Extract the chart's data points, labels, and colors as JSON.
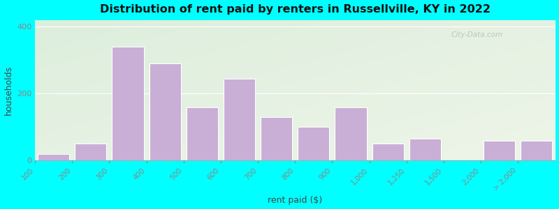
{
  "title": "Distribution of rent paid by renters in Russellville, KY in 2022",
  "xlabel": "rent paid ($)",
  "ylabel": "households",
  "bar_color": "#c9aed6",
  "bar_edgecolor": "#ffffff",
  "outer_bg": "#00ffff",
  "tick_labels": [
    "100",
    "200",
    "300",
    "400",
    "500",
    "600",
    "700",
    "800",
    "900",
    "1,000",
    "1,250",
    "1,500",
    "2,000",
    "> 2,000"
  ],
  "bin_edges": [
    0,
    1,
    2,
    3,
    4,
    5,
    6,
    7,
    8,
    9,
    10,
    11,
    12,
    13,
    14
  ],
  "values": [
    20,
    50,
    340,
    290,
    160,
    245,
    130,
    100,
    160,
    50,
    65,
    0,
    60,
    60
  ],
  "ylim": [
    0,
    420
  ],
  "yticks": [
    0,
    200,
    400
  ],
  "bg_color_topleft": "#ddeedd",
  "bg_color_bottomright": "#eef5e8",
  "watermark": "City-Data.com"
}
